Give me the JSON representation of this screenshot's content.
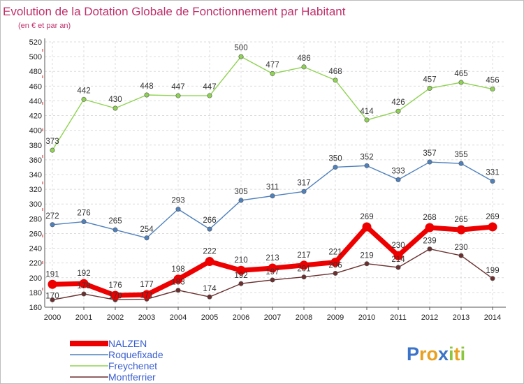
{
  "chart_data": {
    "type": "line",
    "title": "Evolution de la Dotation Globale de Fonctionnement par Habitant",
    "subtitle": "(en € et par an)",
    "x": [
      "2000",
      "2001",
      "2002",
      "2003",
      "2004",
      "2005",
      "2006",
      "2007",
      "2008",
      "2009",
      "2010",
      "2011",
      "2012",
      "2013",
      "2014"
    ],
    "ylim": [
      160,
      520
    ],
    "yticks": [
      160,
      180,
      200,
      220,
      240,
      260,
      280,
      300,
      320,
      340,
      360,
      380,
      400,
      420,
      440,
      460,
      480,
      500,
      520
    ],
    "grid": true,
    "legend_position": "bottom-left",
    "series": [
      {
        "name": "NALZEN",
        "color": "#ee0000",
        "values": [
          191,
          192,
          176,
          177,
          198,
          222,
          210,
          213,
          217,
          221,
          269,
          230,
          268,
          265,
          269
        ]
      },
      {
        "name": "Roquefixade",
        "color": "#4f81bd",
        "values": [
          272,
          276,
          265,
          254,
          293,
          266,
          305,
          311,
          317,
          350,
          352,
          333,
          357,
          355,
          331
        ]
      },
      {
        "name": "Freychenet",
        "color": "#8fd352",
        "values": [
          373,
          442,
          430,
          448,
          447,
          447,
          500,
          477,
          486,
          468,
          414,
          426,
          457,
          465,
          456
        ]
      },
      {
        "name": "Montferrier",
        "color": "#6b2f2f",
        "values": [
          170,
          178,
          170,
          171,
          183,
          174,
          192,
          197,
          201,
          206,
          219,
          214,
          239,
          230,
          199
        ]
      }
    ]
  },
  "logo": {
    "text": "Proxiti",
    "letters": [
      {
        "ch": "P",
        "color": "#3b73c8"
      },
      {
        "ch": "r",
        "color": "#e8a020"
      },
      {
        "ch": "o",
        "color": "#e8a020"
      },
      {
        "ch": "x",
        "color": "#3b73c8"
      },
      {
        "ch": "i",
        "color": "#8cc63f"
      },
      {
        "ch": "t",
        "color": "#e8a020"
      },
      {
        "ch": "i",
        "color": "#8cc63f"
      }
    ]
  }
}
